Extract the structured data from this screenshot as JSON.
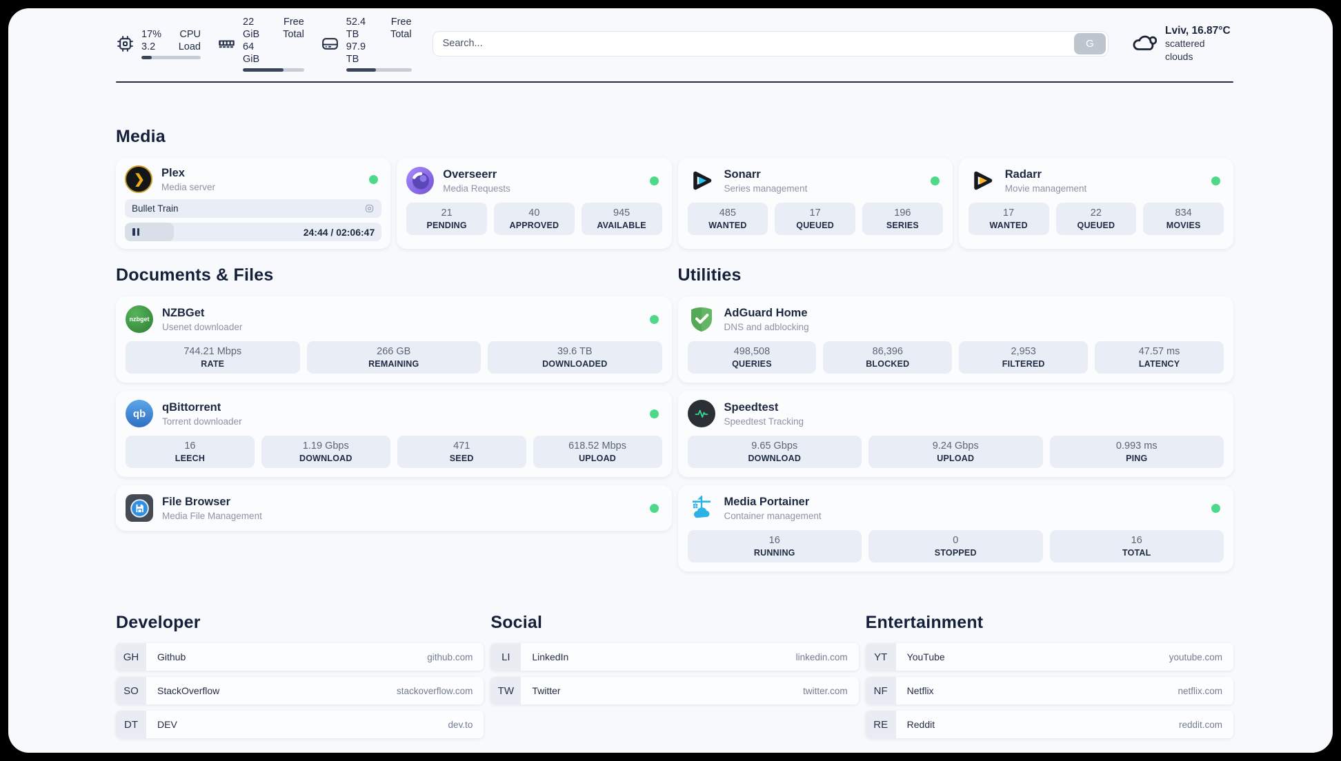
{
  "colors": {
    "status_online": "#4ed98a",
    "plex_accent": "#ebaf1a",
    "sonarr_accent": "#2cc5f2",
    "radarr_accent": "#ffb62e",
    "adguard_green": "#63b663",
    "portainer_blue": "#2bb3e6",
    "speedtest_pulse": "#35d992"
  },
  "header": {
    "system": [
      {
        "name": "cpu",
        "top_value": "17%",
        "bottom_value": "3.2",
        "top_label": "CPU",
        "bottom_label": "Load",
        "progress_pct": 17
      },
      {
        "name": "memory",
        "top_value": "22 GiB",
        "bottom_value": "64 GiB",
        "top_label": "Free",
        "bottom_label": "Total",
        "progress_pct": 66
      },
      {
        "name": "storage",
        "top_value": "52.4 TB",
        "bottom_value": "97.9 TB",
        "top_label": "Free",
        "bottom_label": "Total",
        "progress_pct": 46
      }
    ],
    "search": {
      "placeholder": "Search...",
      "button_label": "G"
    },
    "weather": {
      "location": "Lviv, 16.87°C",
      "condition": "scattered clouds"
    }
  },
  "media": {
    "title": "Media",
    "plex": {
      "name": "Plex",
      "description": "Media server",
      "status": "online",
      "now_playing": "Bullet Train",
      "time": "24:44 / 02:06:47",
      "progress_pct": 19
    },
    "overseerr": {
      "name": "Overseerr",
      "description": "Media Requests",
      "status": "online",
      "stats": [
        {
          "value": "21",
          "label": "PENDING"
        },
        {
          "value": "40",
          "label": "APPROVED"
        },
        {
          "value": "945",
          "label": "AVAILABLE"
        }
      ]
    },
    "sonarr": {
      "name": "Sonarr",
      "description": "Series management",
      "status": "online",
      "stats": [
        {
          "value": "485",
          "label": "WANTED"
        },
        {
          "value": "17",
          "label": "QUEUED"
        },
        {
          "value": "196",
          "label": "SERIES"
        }
      ]
    },
    "radarr": {
      "name": "Radarr",
      "description": "Movie management",
      "status": "online",
      "stats": [
        {
          "value": "17",
          "label": "WANTED"
        },
        {
          "value": "22",
          "label": "QUEUED"
        },
        {
          "value": "834",
          "label": "MOVIES"
        }
      ]
    }
  },
  "documents": {
    "title": "Documents & Files",
    "nzbget": {
      "name": "NZBGet",
      "description": "Usenet downloader",
      "status": "online",
      "badge": "nzbget",
      "stats": [
        {
          "value": "744.21 Mbps",
          "label": "RATE"
        },
        {
          "value": "266 GB",
          "label": "REMAINING"
        },
        {
          "value": "39.6 TB",
          "label": "DOWNLOADED"
        }
      ]
    },
    "qbittorrent": {
      "name": "qBittorrent",
      "description": "Torrent downloader",
      "status": "online",
      "badge": "qb",
      "stats": [
        {
          "value": "16",
          "label": "LEECH"
        },
        {
          "value": "1.19 Gbps",
          "label": "DOWNLOAD"
        },
        {
          "value": "471",
          "label": "SEED"
        },
        {
          "value": "618.52 Mbps",
          "label": "UPLOAD"
        }
      ]
    },
    "filebrowser": {
      "name": "File Browser",
      "description": "Media File Management",
      "status": "online"
    }
  },
  "utilities": {
    "title": "Utilities",
    "adguard": {
      "name": "AdGuard Home",
      "description": "DNS and adblocking",
      "stats": [
        {
          "value": "498,508",
          "label": "QUERIES"
        },
        {
          "value": "86,396",
          "label": "BLOCKED"
        },
        {
          "value": "2,953",
          "label": "FILTERED"
        },
        {
          "value": "47.57 ms",
          "label": "LATENCY"
        }
      ]
    },
    "speedtest": {
      "name": "Speedtest",
      "description": "Speedtest Tracking",
      "stats": [
        {
          "value": "9.65 Gbps",
          "label": "DOWNLOAD"
        },
        {
          "value": "9.24 Gbps",
          "label": "UPLOAD"
        },
        {
          "value": "0.993 ms",
          "label": "PING"
        }
      ]
    },
    "portainer": {
      "name": "Media Portainer",
      "description": "Container management",
      "status": "online",
      "stats": [
        {
          "value": "16",
          "label": "RUNNING"
        },
        {
          "value": "0",
          "label": "STOPPED"
        },
        {
          "value": "16",
          "label": "TOTAL"
        }
      ]
    }
  },
  "bookmarks": [
    {
      "title": "Developer",
      "items": [
        {
          "tag": "GH",
          "name": "Github",
          "url": "github.com"
        },
        {
          "tag": "SO",
          "name": "StackOverflow",
          "url": "stackoverflow.com"
        },
        {
          "tag": "DT",
          "name": "DEV",
          "url": "dev.to"
        }
      ]
    },
    {
      "title": "Social",
      "items": [
        {
          "tag": "LI",
          "name": "LinkedIn",
          "url": "linkedin.com"
        },
        {
          "tag": "TW",
          "name": "Twitter",
          "url": "twitter.com"
        }
      ]
    },
    {
      "title": "Entertainment",
      "items": [
        {
          "tag": "YT",
          "name": "YouTube",
          "url": "youtube.com"
        },
        {
          "tag": "NF",
          "name": "Netflix",
          "url": "netflix.com"
        },
        {
          "tag": "RE",
          "name": "Reddit",
          "url": "reddit.com"
        }
      ]
    }
  ]
}
